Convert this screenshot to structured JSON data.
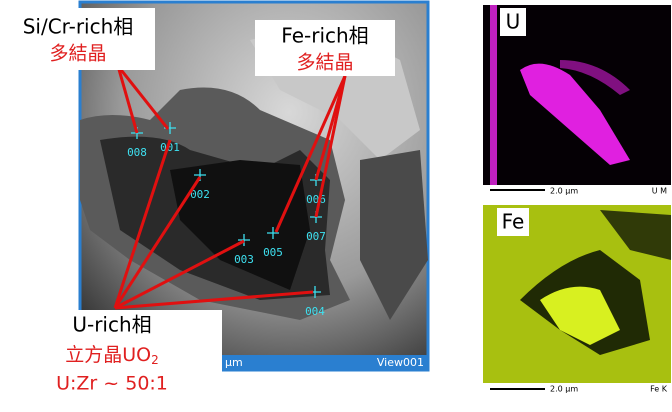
{
  "main_image": {
    "scale_label": "μm",
    "view_label": "View001",
    "points": [
      "008",
      "001",
      "002",
      "003",
      "005",
      "006",
      "007",
      "004"
    ]
  },
  "annotations": {
    "si_cr": {
      "title": "Si/Cr-rich相",
      "note": "多結晶"
    },
    "fe": {
      "title": "Fe-rich相",
      "note": "多結晶"
    },
    "u": {
      "title": "U-rich相",
      "crystal": {
        "text": "立方晶UO",
        "subscript": "2"
      },
      "ratio": "U:Zr ~ 50:1"
    }
  },
  "maps": [
    {
      "element": "U",
      "scale": "2.0 μm",
      "line": "U M"
    },
    {
      "element": "Fe",
      "scale": "2.0 μm",
      "line": "Fe K"
    }
  ]
}
